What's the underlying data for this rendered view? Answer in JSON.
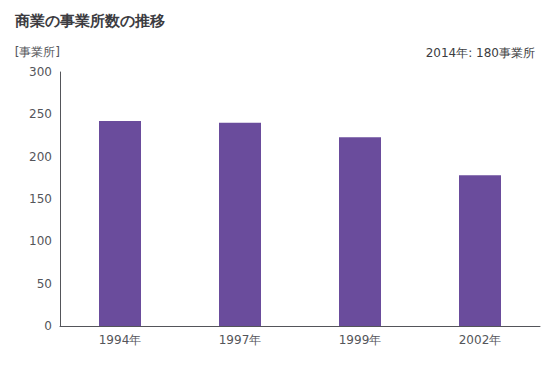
{
  "chart_data": {
    "type": "bar",
    "title": "商業の事業所数の推移",
    "ylabel": "[事業所]",
    "annotation": "2014年: 180事業所",
    "categories": [
      "1994年",
      "1997年",
      "1999年",
      "2002年"
    ],
    "values": [
      242,
      240,
      223,
      178
    ],
    "color": "#6A4C9C",
    "ylim": [
      0,
      300
    ],
    "yticks": [
      0,
      50,
      100,
      150,
      200,
      250,
      300
    ],
    "grid": false
  }
}
